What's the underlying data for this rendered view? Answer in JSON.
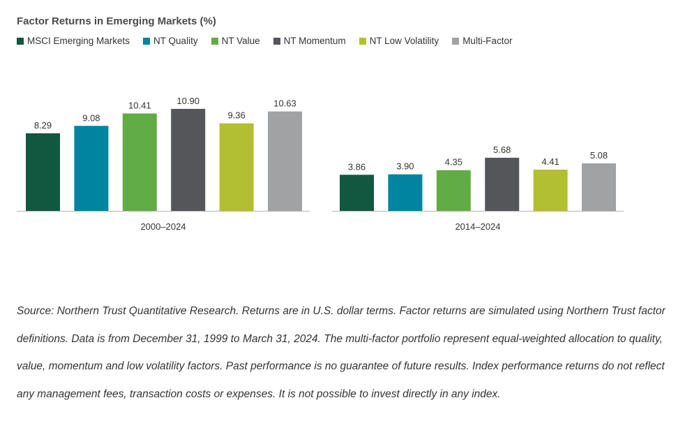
{
  "title": "Factor Returns in Emerging Markets (%)",
  "colors": {
    "MSCI Emerging Markets": "#12573f",
    "NT Quality": "#00849f",
    "NT Value": "#62ac45",
    "NT Momentum": "#55565a",
    "NT Low Volatility": "#b3bf32",
    "Multi-Factor": "#a1a2a4"
  },
  "chart_data": [
    {
      "type": "bar",
      "title": "",
      "xlabel": "2000–2024",
      "ylabel": "",
      "ylim": [
        0,
        12
      ],
      "grid": false,
      "legend": "top-left",
      "categories": [
        "MSCI Emerging Markets",
        "NT Quality",
        "NT Value",
        "NT Momentum",
        "NT Low Volatility",
        "Multi-Factor"
      ],
      "values": [
        8.29,
        9.08,
        10.41,
        10.9,
        9.36,
        10.63
      ],
      "labels": [
        "8.29",
        "9.08",
        "10.41",
        "10.90",
        "9.36",
        "10.63"
      ]
    },
    {
      "type": "bar",
      "title": "",
      "xlabel": "2014–2024",
      "ylabel": "",
      "ylim": [
        0,
        12
      ],
      "grid": false,
      "legend": "top-left",
      "categories": [
        "MSCI Emerging Markets",
        "NT Quality",
        "NT Value",
        "NT Momentum",
        "NT Low Volatility",
        "Multi-Factor"
      ],
      "values": [
        3.86,
        3.9,
        4.35,
        5.68,
        4.41,
        5.08
      ],
      "labels": [
        "3.86",
        "3.90",
        "4.35",
        "5.68",
        "4.41",
        "5.08"
      ]
    }
  ],
  "legend": [
    {
      "label": "MSCI Emerging Markets",
      "color": "#12573f"
    },
    {
      "label": "NT Quality",
      "color": "#00849f"
    },
    {
      "label": "NT Value",
      "color": "#62ac45"
    },
    {
      "label": "NT Momentum",
      "color": "#55565a"
    },
    {
      "label": "NT Low Volatility",
      "color": "#b3bf32"
    },
    {
      "label": "Multi-Factor",
      "color": "#a1a2a4"
    }
  ],
  "source_note": "Source: Northern Trust Quantitative Research. Returns are in U.S. dollar terms. Factor returns are simulated using Northern Trust factor definitions. Data is from December 31, 1999 to March 31, 2024. The multi-factor portfolio represent equal-weighted allocation to quality, value, momentum and low volatility factors. Past performance is no guarantee of future results. Index performance returns do not reflect any management fees, transaction costs or expenses. It is not possible to invest directly in any index."
}
